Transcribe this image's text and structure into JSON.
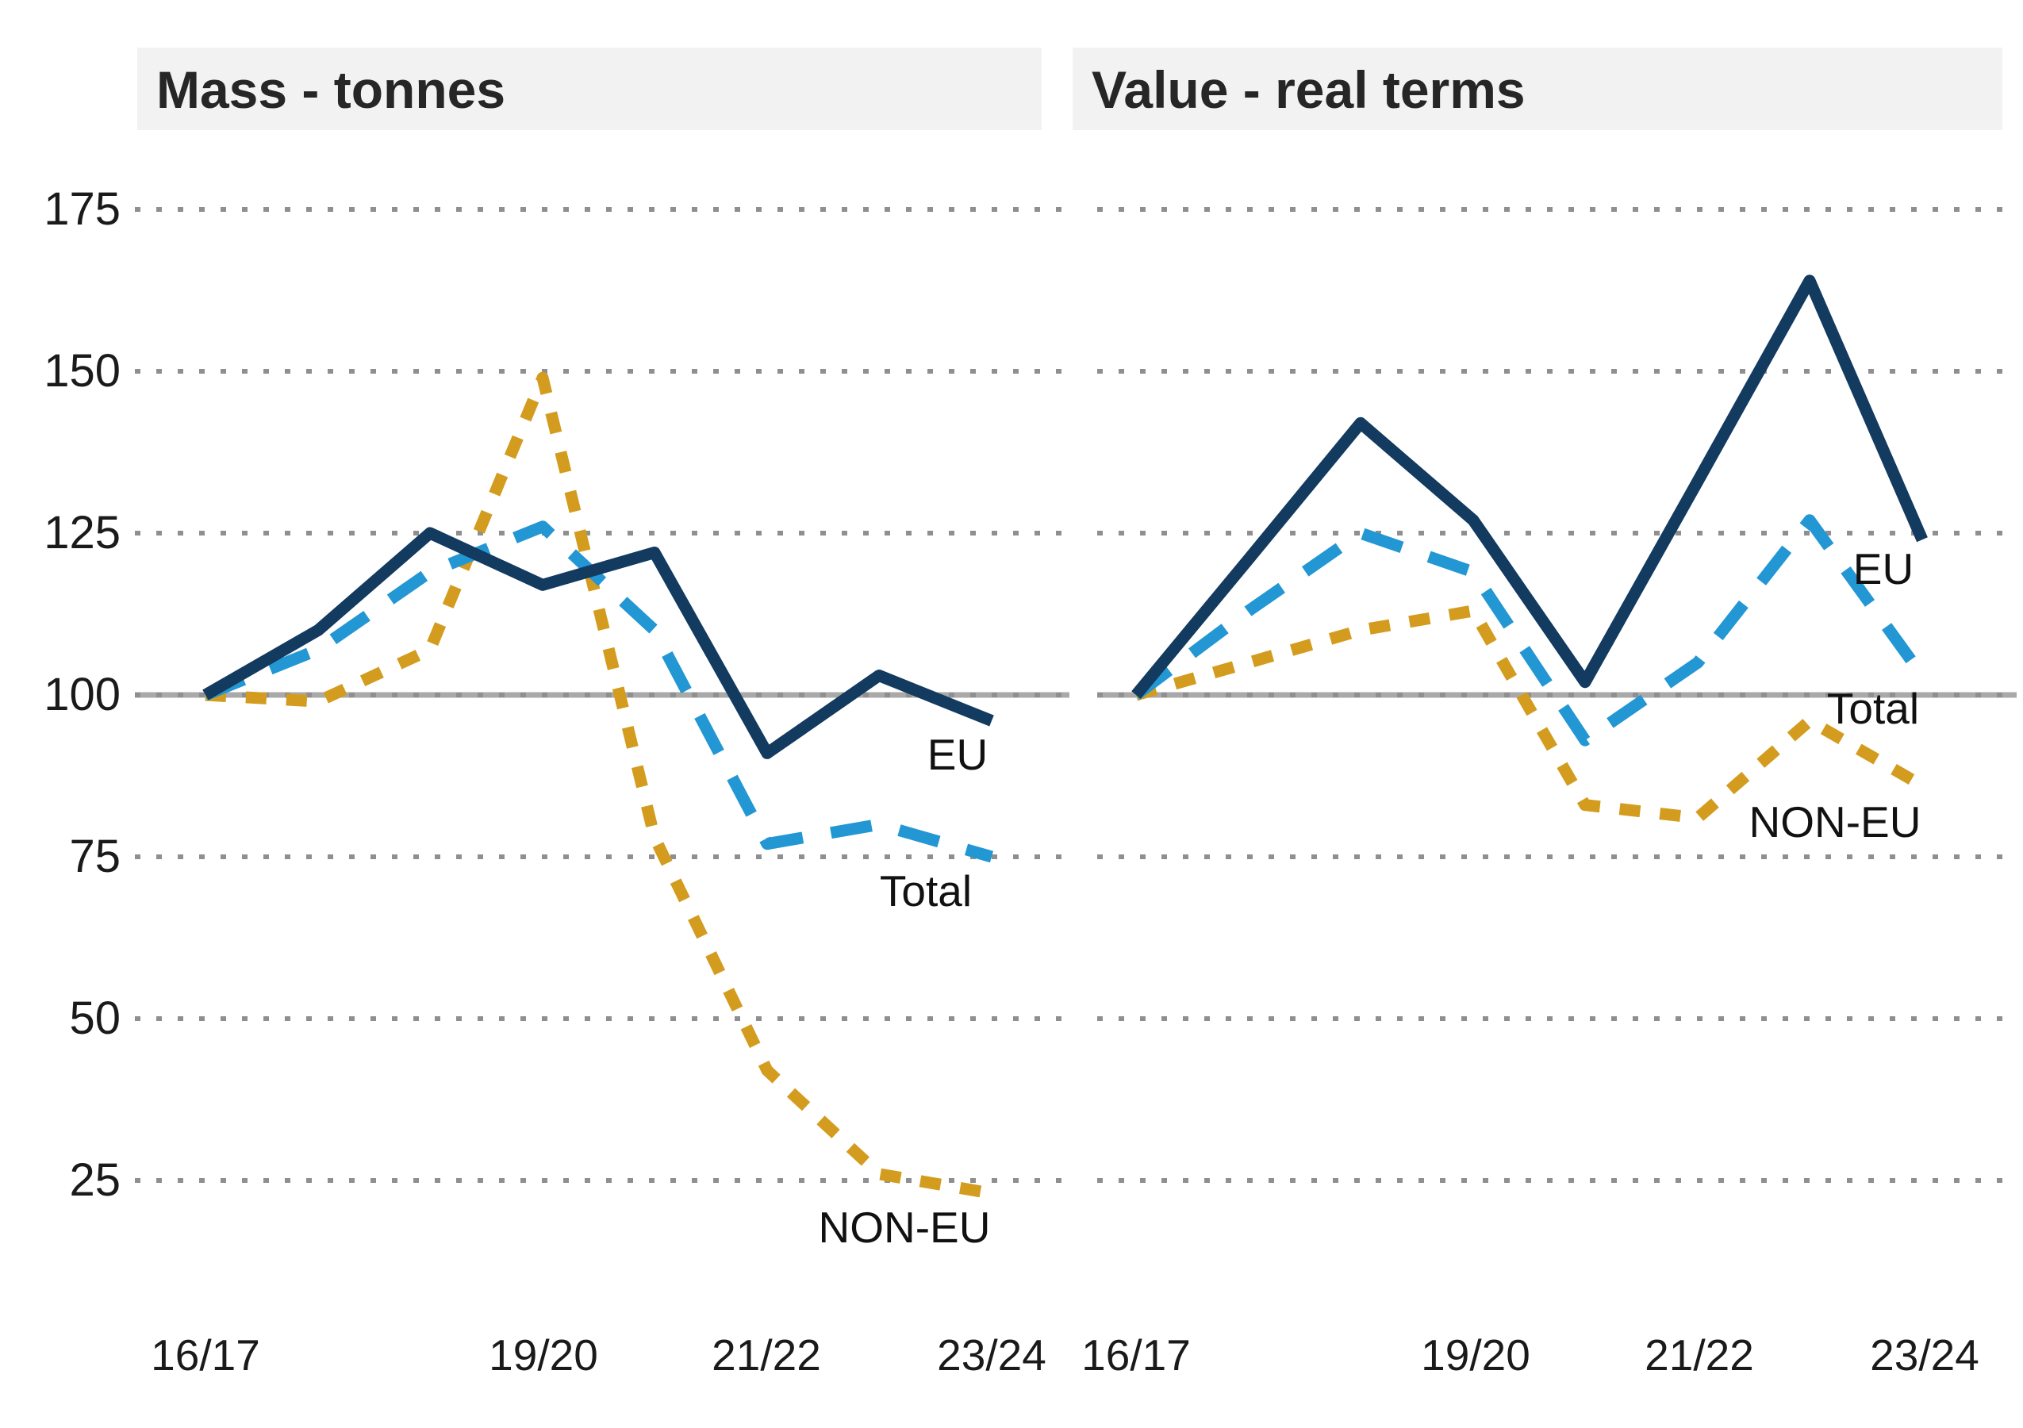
{
  "colors": {
    "eu": "#133a5f",
    "total": "#2397d3",
    "non_eu": "#d39c1e",
    "baseline": "#a9a9a9",
    "gridline": "#8f8f8f",
    "title_band": "#f2f2f2",
    "title_text": "#262626",
    "axis_text": "#1a1a1a"
  },
  "y_axis": {
    "tick_labels": [
      "175",
      "150",
      "125",
      "100",
      "75",
      "50",
      "25"
    ],
    "ticks": [
      175,
      150,
      125,
      100,
      75,
      50,
      25
    ],
    "baseline_value": 100,
    "range": [
      25,
      175
    ],
    "grid": "dotted"
  },
  "x_axis": {
    "categories": [
      "16/17",
      "17/18",
      "18/19",
      "19/20",
      "20/21",
      "21/22",
      "22/23",
      "23/24"
    ],
    "shown_tick_labels": [
      "16/17",
      "19/20",
      "21/22",
      "23/24"
    ]
  },
  "chart_data": [
    {
      "type": "line",
      "title": "Mass - tonnes",
      "x": [
        "16/17",
        "17/18",
        "18/19",
        "19/20",
        "20/21",
        "21/22",
        "22/23",
        "23/24"
      ],
      "ylim": [
        25,
        175
      ],
      "baseline": 100,
      "legend_position": "inline-labels",
      "series": [
        {
          "name": "EU",
          "style": "solid",
          "color": "#133a5f",
          "values": [
            100,
            110,
            125,
            117,
            122,
            91,
            103,
            96
          ]
        },
        {
          "name": "Total",
          "style": "dashed",
          "color": "#2397d3",
          "values": [
            100,
            107,
            119,
            126,
            110,
            77,
            80,
            75
          ]
        },
        {
          "name": "NON-EU",
          "style": "dotted",
          "color": "#d39c1e",
          "values": [
            100,
            99,
            107,
            149,
            78,
            42,
            26,
            23
          ]
        }
      ]
    },
    {
      "type": "line",
      "title": "Value - real terms",
      "x": [
        "16/17",
        "17/18",
        "18/19",
        "19/20",
        "20/21",
        "21/22",
        "22/23",
        "23/24"
      ],
      "ylim": [
        25,
        175
      ],
      "baseline": 100,
      "legend_position": "inline-labels",
      "series": [
        {
          "name": "EU",
          "style": "solid",
          "color": "#133a5f",
          "values": [
            100,
            121,
            142,
            127,
            102,
            133,
            164,
            124
          ]
        },
        {
          "name": "Total",
          "style": "dashed",
          "color": "#2397d3",
          "values": [
            100,
            113,
            125,
            119,
            93,
            105,
            127,
            103
          ]
        },
        {
          "name": "NON-EU",
          "style": "dotted",
          "color": "#d39c1e",
          "values": [
            100,
            105,
            110,
            113,
            83,
            81,
            96,
            86
          ]
        }
      ]
    }
  ]
}
